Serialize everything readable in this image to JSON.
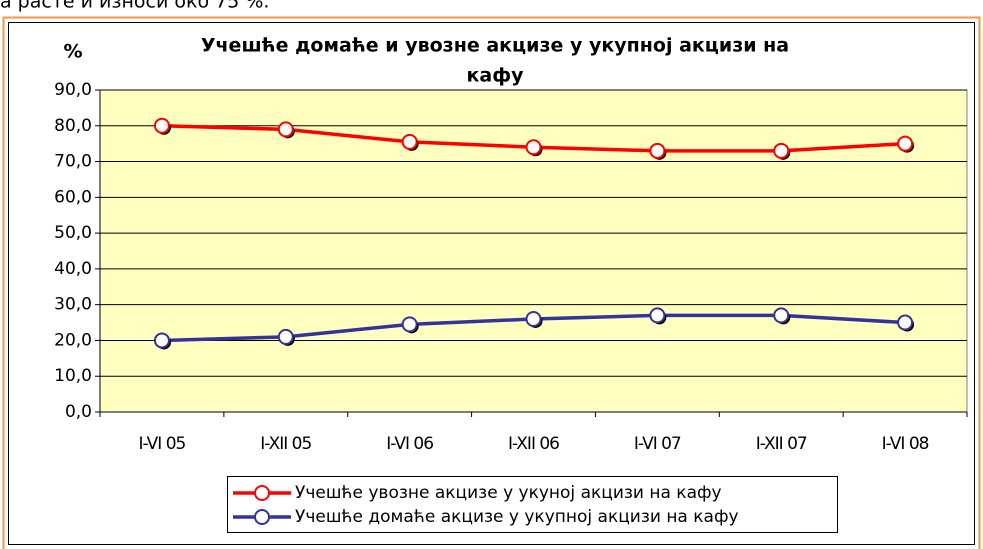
{
  "intro_text": "а расте и износи око 75 %.",
  "chart_data": {
    "type": "line",
    "title": [
      "Учешће домаће и увозне акцизе у укупној акцизи на",
      "кафу"
    ],
    "y_label": "%",
    "categories": [
      "I-VI 05",
      "I-XII 05",
      "I-VI 06",
      "I-XII 06",
      "I-VI 07",
      "I-XII 07",
      "I-VI 08"
    ],
    "series": [
      {
        "name": "Учешће увозне акцизе у укуној акцизи на кафу",
        "color": "#ff0000",
        "values": [
          80,
          79,
          75.5,
          74,
          73,
          73,
          75
        ]
      },
      {
        "name": "Учешће домаће акцизе у укупној акцизи на кафу",
        "color": "#333399",
        "values": [
          20,
          21,
          24.5,
          26,
          27,
          27,
          25
        ]
      }
    ],
    "ylim": [
      0,
      90
    ],
    "yticks": [
      {
        "value": 0,
        "label": "0,0"
      },
      {
        "value": 10,
        "label": "10,0"
      },
      {
        "value": 20,
        "label": "20,0"
      },
      {
        "value": 30,
        "label": "30,0"
      },
      {
        "value": 40,
        "label": "40,0"
      },
      {
        "value": 50,
        "label": "50,0"
      },
      {
        "value": 60,
        "label": "60,0"
      },
      {
        "value": 70,
        "label": "70,0"
      },
      {
        "value": 80,
        "label": "80,0"
      },
      {
        "value": 90,
        "label": "90,0"
      }
    ],
    "grid": true,
    "legend": "bottom"
  }
}
